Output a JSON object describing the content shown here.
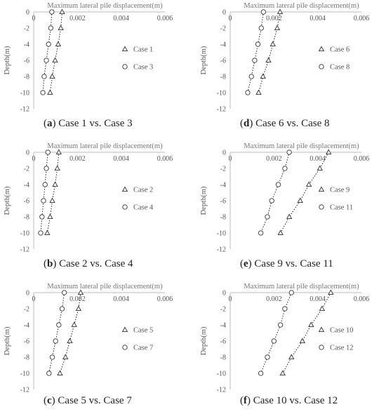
{
  "chart_data": [
    {
      "type": "scatter",
      "panel_label": "a",
      "caption": "Case 1 vs. Case 3",
      "title": "Maximum lateral pile displacement(m)",
      "ylabel": "Depth(m)",
      "xlim": [
        0,
        0.006
      ],
      "ylim": [
        -12,
        0
      ],
      "x_ticks": [
        "0",
        "0.002",
        "0.004",
        "0.006"
      ],
      "y_ticks": [
        "0",
        "-2",
        "-4",
        "-6",
        "-8",
        "-10",
        "-12"
      ],
      "depth": [
        0,
        -2,
        -4,
        -6,
        -8,
        -10
      ],
      "series": [
        {
          "name": "Case 1",
          "marker": "triangle",
          "x": [
            0.0013,
            0.00124,
            0.00112,
            0.00098,
            0.00085,
            0.00075
          ]
        },
        {
          "name": "Case 3",
          "marker": "circle",
          "x": [
            0.00083,
            0.00078,
            0.00068,
            0.00058,
            0.00048,
            0.00042
          ]
        }
      ]
    },
    {
      "type": "scatter",
      "panel_label": "b",
      "caption": "Case 2 vs. Case 4",
      "title": "Maximum lateral pile displacement(m)",
      "ylabel": "Depth(m)",
      "xlim": [
        0,
        0.006
      ],
      "ylim": [
        -12,
        0
      ],
      "x_ticks": [
        "0",
        "0.002",
        "0.004",
        "0.006"
      ],
      "y_ticks": [
        "0",
        "-2",
        "-4",
        "-6",
        "-8",
        "-10",
        "-12"
      ],
      "depth": [
        0,
        -2,
        -4,
        -6,
        -8,
        -10
      ],
      "series": [
        {
          "name": "Case 2",
          "marker": "triangle",
          "x": [
            0.00115,
            0.00108,
            0.00098,
            0.00085,
            0.00075,
            0.00062
          ]
        },
        {
          "name": "Case 4",
          "marker": "circle",
          "x": [
            0.00065,
            0.00058,
            0.00052,
            0.00045,
            0.00038,
            0.00032
          ]
        }
      ]
    },
    {
      "type": "scatter",
      "panel_label": "c",
      "caption": "Case 5 vs. Case 7",
      "title": "Maximum lateral pile displacement(m)",
      "ylabel": "Depth(m)",
      "xlim": [
        0,
        0.006
      ],
      "ylim": [
        -12,
        0
      ],
      "x_ticks": [
        "0",
        "0.002",
        "0.004",
        "0.006"
      ],
      "y_ticks": [
        "0",
        "-2",
        "-4",
        "-6",
        "-8",
        "-10",
        "-12"
      ],
      "depth": [
        0,
        -2,
        -4,
        -6,
        -8,
        -10
      ],
      "series": [
        {
          "name": "Case 5",
          "marker": "triangle",
          "x": [
            0.00215,
            0.00205,
            0.00185,
            0.00165,
            0.00145,
            0.0012
          ]
        },
        {
          "name": "Case 7",
          "marker": "circle",
          "x": [
            0.0014,
            0.0013,
            0.00115,
            0.001,
            0.00085,
            0.0007
          ]
        }
      ]
    },
    {
      "type": "scatter",
      "panel_label": "d",
      "caption": "Case 6 vs. Case 8",
      "title": "Maximum lateral pile displacement(m)",
      "ylabel": "Depth(m)",
      "xlim": [
        0,
        0.006
      ],
      "ylim": [
        -12,
        0
      ],
      "x_ticks": [
        "0",
        "0.002",
        "0.004",
        "0.006"
      ],
      "y_ticks": [
        "0",
        "-2",
        "-4",
        "-6",
        "-8",
        "-10",
        "-12"
      ],
      "depth": [
        0,
        -2,
        -4,
        -6,
        -8,
        -10
      ],
      "series": [
        {
          "name": "Case 6",
          "marker": "triangle",
          "x": [
            0.00228,
            0.00215,
            0.00195,
            0.00175,
            0.0015,
            0.0013
          ]
        },
        {
          "name": "Case 8",
          "marker": "circle",
          "x": [
            0.00152,
            0.00142,
            0.00127,
            0.00112,
            0.00097,
            0.0008
          ]
        }
      ]
    },
    {
      "type": "scatter",
      "panel_label": "e",
      "caption": "Case 9 vs. Case 11",
      "title": "Maximum lateral pile displacement(m)",
      "ylabel": "Depth(m)",
      "xlim": [
        0,
        0.006
      ],
      "ylim": [
        -12,
        0
      ],
      "x_ticks": [
        "0",
        "0.002",
        "0.004",
        "0.006"
      ],
      "y_ticks": [
        "0",
        "-2",
        "-4",
        "-6",
        "-8",
        "-10",
        "-12"
      ],
      "depth": [
        0,
        -2,
        -4,
        -6,
        -8,
        -10
      ],
      "series": [
        {
          "name": "Case 9",
          "marker": "triangle",
          "x": [
            0.0045,
            0.0041,
            0.0036,
            0.0032,
            0.0027,
            0.0023
          ]
        },
        {
          "name": "Case 11",
          "marker": "circle",
          "x": [
            0.0027,
            0.0025,
            0.0022,
            0.0019,
            0.0017,
            0.0014
          ]
        }
      ]
    },
    {
      "type": "scatter",
      "panel_label": "f",
      "caption": "Case 10 vs. Case 12",
      "title": "Maximum lateral pile displacement(m)",
      "ylabel": "Depth(m)",
      "xlim": [
        0,
        0.006
      ],
      "ylim": [
        -12,
        0
      ],
      "x_ticks": [
        "0",
        "0.002",
        "0.004",
        "0.006"
      ],
      "y_ticks": [
        "0",
        "-2",
        "-4",
        "-6",
        "-8",
        "-10",
        "-12"
      ],
      "depth": [
        0,
        -2,
        -4,
        -6,
        -8,
        -10
      ],
      "series": [
        {
          "name": "Case 10",
          "marker": "triangle",
          "x": [
            0.0046,
            0.0042,
            0.0037,
            0.0033,
            0.0028,
            0.0024
          ]
        },
        {
          "name": "Case 12",
          "marker": "circle",
          "x": [
            0.0028,
            0.0025,
            0.0023,
            0.002,
            0.0017,
            0.0014
          ]
        }
      ]
    }
  ]
}
